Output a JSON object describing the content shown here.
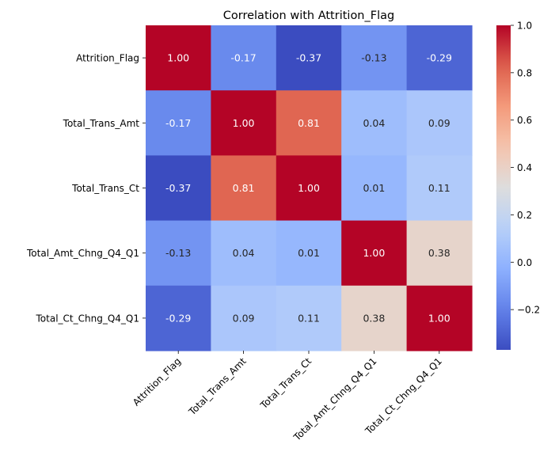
{
  "chart_data": {
    "type": "heatmap",
    "title": "Correlation with Attrition_Flag",
    "xlabel": "",
    "ylabel": "",
    "x_categories": [
      "Attrition_Flag",
      "Total_Trans_Amt",
      "Total_Trans_Ct",
      "Total_Amt_Chng_Q4_Q1",
      "Total_Ct_Chng_Q4_Q1"
    ],
    "y_categories": [
      "Attrition_Flag",
      "Total_Trans_Amt",
      "Total_Trans_Ct",
      "Total_Amt_Chng_Q4_Q1",
      "Total_Ct_Chng_Q4_Q1"
    ],
    "values": [
      [
        1.0,
        -0.17,
        -0.37,
        -0.13,
        -0.29
      ],
      [
        -0.17,
        1.0,
        0.81,
        0.04,
        0.09
      ],
      [
        -0.37,
        0.81,
        1.0,
        0.01,
        0.11
      ],
      [
        -0.13,
        0.04,
        0.01,
        1.0,
        0.38
      ],
      [
        -0.29,
        0.09,
        0.11,
        0.38,
        1.0
      ]
    ],
    "cell_labels": [
      [
        "1.00",
        "-0.17",
        "-0.37",
        "-0.13",
        "-0.29"
      ],
      [
        "-0.17",
        "1.00",
        "0.81",
        "0.04",
        "0.09"
      ],
      [
        "-0.37",
        "0.81",
        "1.00",
        "0.01",
        "0.11"
      ],
      [
        "-0.13",
        "0.04",
        "0.01",
        "1.00",
        "0.38"
      ],
      [
        "-0.29",
        "0.09",
        "0.11",
        "0.38",
        "1.00"
      ]
    ],
    "colormap": "coolwarm",
    "colorbar": {
      "vmin": -0.37,
      "vmax": 1.0,
      "ticks": [
        -0.2,
        0.0,
        0.2,
        0.4,
        0.6,
        0.8,
        1.0
      ],
      "tick_labels": [
        "−0.2",
        "0.0",
        "0.2",
        "0.4",
        "0.6",
        "0.8",
        "1.0"
      ]
    },
    "grid": false,
    "legend": "colorbar-right"
  }
}
